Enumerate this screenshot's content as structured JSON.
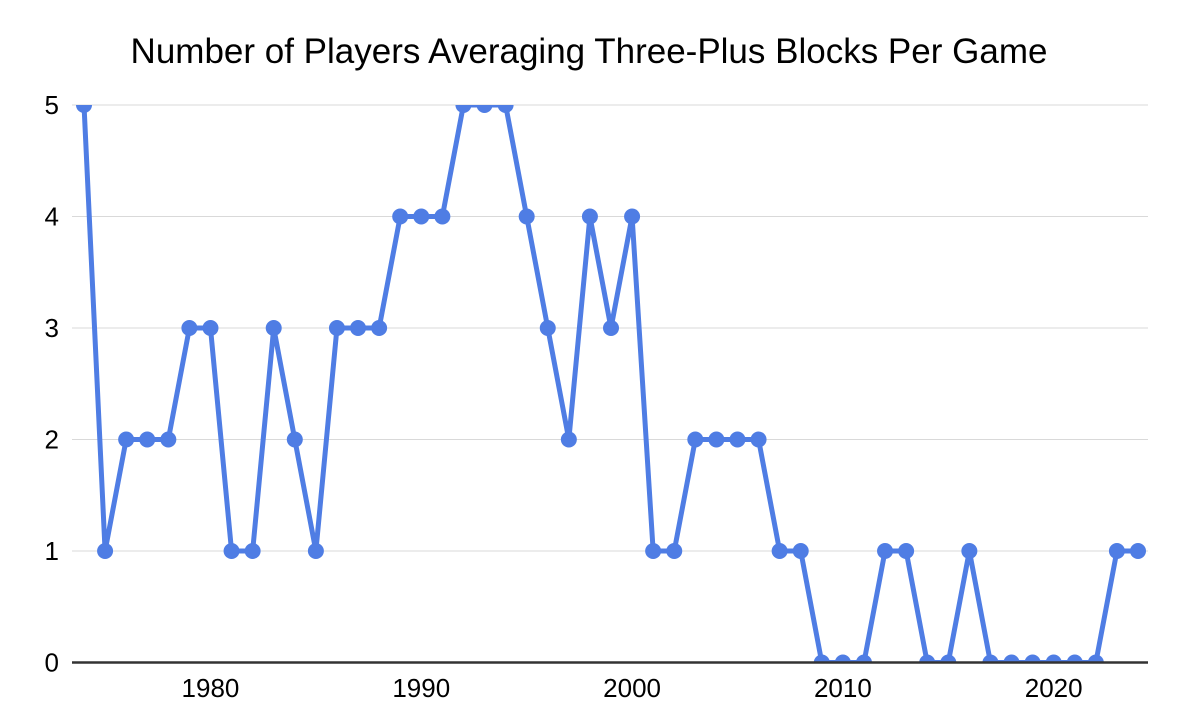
{
  "chart_data": {
    "type": "line",
    "title": "Number of Players Averaging Three-Plus Blocks Per Game",
    "xlabel": "",
    "ylabel": "",
    "x": [
      1974,
      1975,
      1976,
      1977,
      1978,
      1979,
      1980,
      1981,
      1982,
      1983,
      1984,
      1985,
      1986,
      1987,
      1988,
      1989,
      1990,
      1991,
      1992,
      1993,
      1994,
      1995,
      1996,
      1997,
      1998,
      1999,
      2000,
      2001,
      2002,
      2003,
      2004,
      2005,
      2006,
      2007,
      2008,
      2009,
      2010,
      2011,
      2012,
      2013,
      2014,
      2015,
      2016,
      2017,
      2018,
      2019,
      2020,
      2021,
      2022,
      2023,
      2024
    ],
    "values": [
      5,
      1,
      2,
      2,
      2,
      3,
      3,
      1,
      1,
      3,
      2,
      1,
      3,
      3,
      3,
      4,
      4,
      4,
      5,
      5,
      5,
      4,
      3,
      2,
      4,
      3,
      4,
      1,
      1,
      2,
      2,
      2,
      2,
      1,
      1,
      0,
      0,
      0,
      1,
      1,
      0,
      0,
      1,
      0,
      0,
      0,
      0,
      0,
      0,
      1,
      1
    ],
    "ylim": [
      0,
      5
    ],
    "y_ticks": [
      0,
      1,
      2,
      3,
      4,
      5
    ],
    "x_ticks": [
      1980,
      1990,
      2000,
      2010,
      2020
    ],
    "grid": true,
    "legend": "none",
    "line_color": "#4F7DE4",
    "marker_color": "#4F7DE4",
    "gridline_color": "#D9D9D9",
    "axis_color": "#333333",
    "text_color": "#000000",
    "background_color": "#FFFFFF"
  }
}
